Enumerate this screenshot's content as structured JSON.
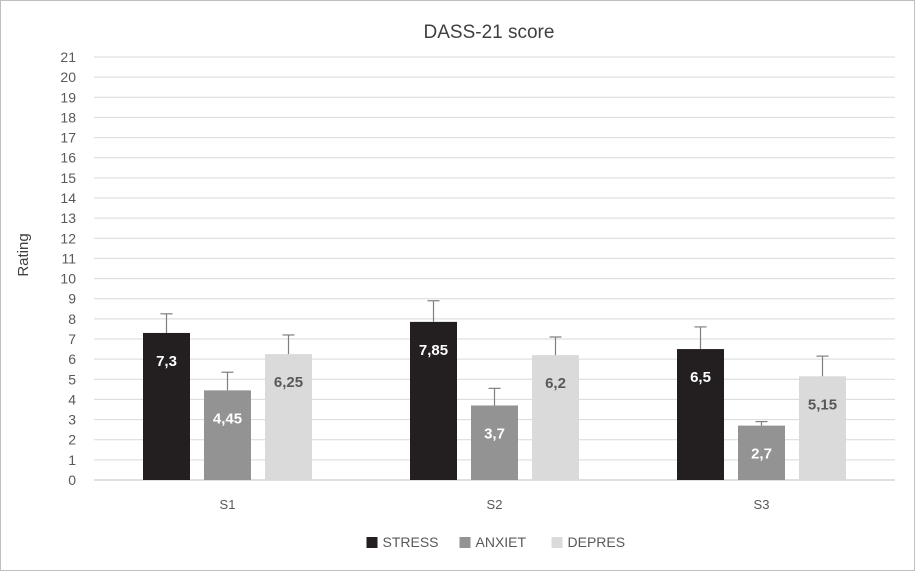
{
  "chart_data": {
    "type": "bar",
    "title": "DASS-21 score",
    "xlabel": "",
    "ylabel": "Rating",
    "ylim": [
      0,
      21
    ],
    "yticks": [
      0,
      1,
      2,
      3,
      4,
      5,
      6,
      7,
      8,
      9,
      10,
      11,
      12,
      13,
      14,
      15,
      16,
      17,
      18,
      19,
      20,
      21
    ],
    "categories": [
      "S1",
      "S2",
      "S3"
    ],
    "series": [
      {
        "name": "STRESS",
        "color": "#231f20",
        "label_color": "#ffffff",
        "values": [
          7.3,
          7.85,
          6.5
        ],
        "labels": [
          "7,3",
          "7,85",
          "6,5"
        ],
        "error": [
          0.95,
          1.05,
          1.1
        ]
      },
      {
        "name": "ANXIET",
        "color": "#939393",
        "label_color": "#ffffff",
        "values": [
          4.45,
          3.7,
          2.7
        ],
        "labels": [
          "4,45",
          "3,7",
          "2,7"
        ],
        "error": [
          0.9,
          0.85,
          0.2
        ]
      },
      {
        "name": "DEPRES",
        "color": "#dadada",
        "label_color": "#595959",
        "values": [
          6.25,
          6.2,
          5.15
        ],
        "labels": [
          "6,25",
          "6,2",
          "5,15"
        ],
        "error": [
          0.95,
          0.9,
          1.0
        ]
      }
    ],
    "grid": true,
    "legend_position": "bottom"
  }
}
